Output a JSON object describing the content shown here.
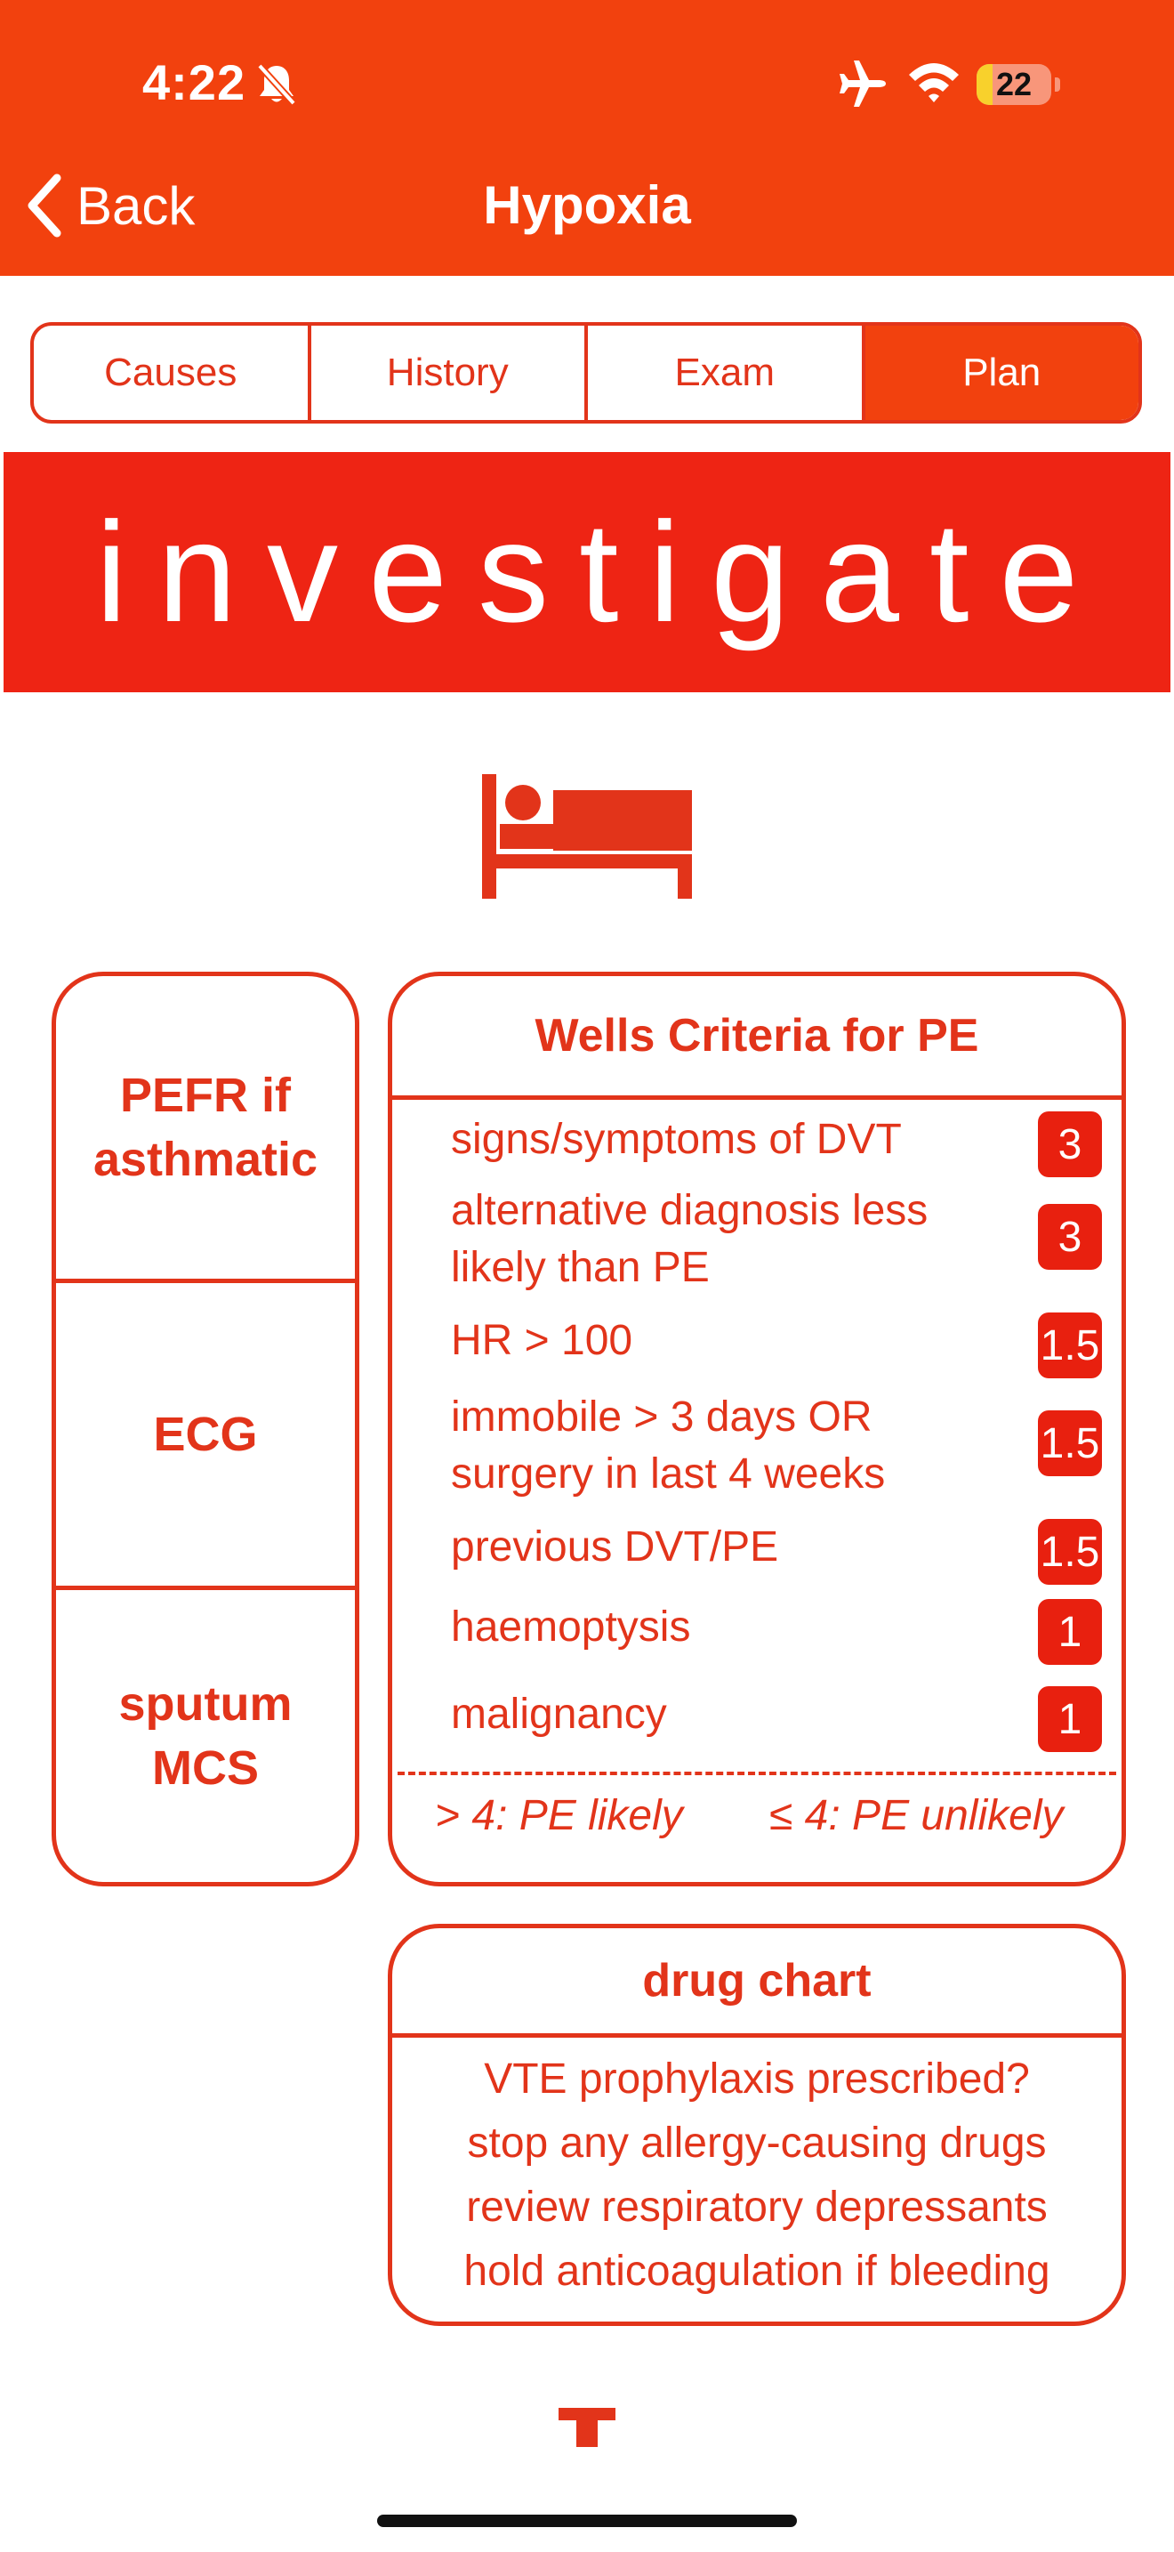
{
  "status_bar": {
    "time": "4:22",
    "battery_level": "22",
    "battery_fraction": 0.22,
    "icons": [
      "bell-slash-icon",
      "airplane-icon",
      "wifi-icon",
      "battery-icon"
    ]
  },
  "nav": {
    "back_label": "Back",
    "title": "Hypoxia"
  },
  "tabs": [
    {
      "label": "Causes",
      "active": false
    },
    {
      "label": "History",
      "active": false
    },
    {
      "label": "Exam",
      "active": false
    },
    {
      "label": "Plan",
      "active": true
    }
  ],
  "banner": {
    "text": "investigate",
    "icon": "bed-icon"
  },
  "left_tests": [
    {
      "label": "PEFR if asthmatic"
    },
    {
      "label": "ECG"
    },
    {
      "label": "sputum MCS"
    }
  ],
  "wells": {
    "title": "Wells Criteria for PE",
    "criteria": [
      {
        "text": "signs/symptoms of DVT",
        "score": "3"
      },
      {
        "text": "alternative diagnosis less likely than PE",
        "score": "3"
      },
      {
        "text": "HR > 100",
        "score": "1.5"
      },
      {
        "text": "immobile > 3 days OR surgery in last 4 weeks",
        "score": "1.5"
      },
      {
        "text": "previous DVT/PE",
        "score": "1.5"
      },
      {
        "text": "haemoptysis",
        "score": "1"
      },
      {
        "text": "malignancy",
        "score": "1"
      }
    ],
    "likely": "> 4: PE likely",
    "unlikely": "≤ 4: PE unlikely"
  },
  "drug_chart": {
    "title": "drug chart",
    "lines": [
      "VTE prophylaxis prescribed?",
      "stop any allergy-causing drugs",
      "review respiratory depressants",
      "hold anticoagulation if bleeding"
    ]
  },
  "footer": {
    "logo_icon": "t-logo-icon"
  },
  "colors": {
    "nav_bar": "#f2410e",
    "banner": "#ee2414",
    "accent": "#e2341a",
    "badge": "#e8200f"
  }
}
